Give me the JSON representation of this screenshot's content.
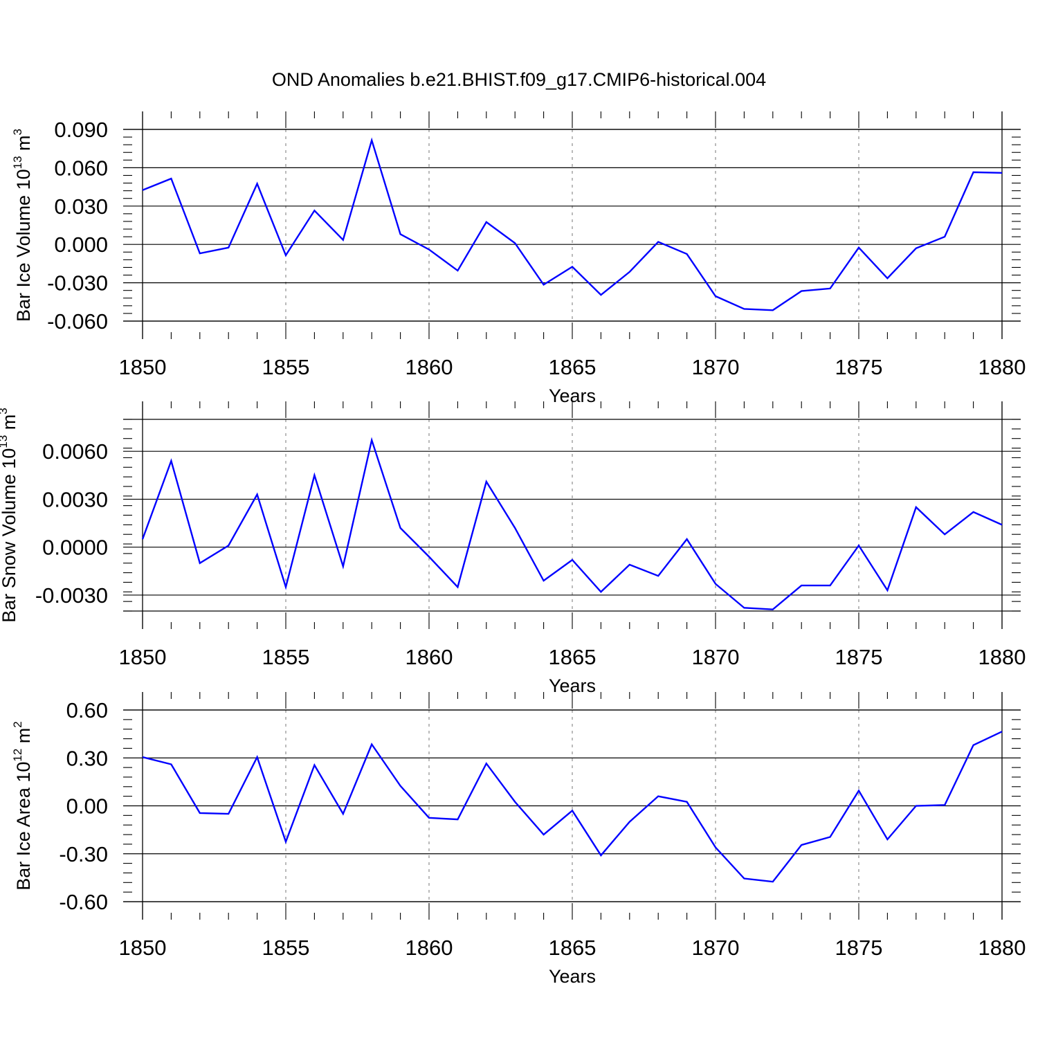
{
  "title": "OND Anomalies b.e21.BHIST.f09_g17.CMIP6-historical.004",
  "colors": {
    "series": "#0000ff",
    "axis": "#000000",
    "grid": "#8c8c8c"
  },
  "chart_data": [
    {
      "type": "line",
      "ylabel": {
        "text": "Bar Ice Volume 10",
        "exp": "13",
        "unit": " m",
        "unit_exp": "3"
      },
      "xlabel": "Years",
      "xlim": [
        1850,
        1880
      ],
      "ylim": [
        -0.06,
        0.09
      ],
      "xticks": [
        "1850",
        "1855",
        "1860",
        "1865",
        "1870",
        "1875",
        "1880"
      ],
      "yticks": [
        "0.090",
        "0.060",
        "0.030",
        "0.000",
        "-0.030",
        "-0.060"
      ],
      "ytick_values": [
        0.09,
        0.06,
        0.03,
        0.0,
        -0.03,
        -0.06
      ],
      "grid": "dashed vertical at major x ticks",
      "x": [
        1850,
        1851,
        1852,
        1853,
        1854,
        1855,
        1856,
        1857,
        1858,
        1859,
        1860,
        1861,
        1862,
        1863,
        1864,
        1865,
        1866,
        1867,
        1868,
        1869,
        1870,
        1871,
        1872,
        1873,
        1874,
        1875,
        1876,
        1877,
        1878,
        1879,
        1880
      ],
      "y": [
        0.0425,
        0.0515,
        -0.007,
        -0.0025,
        0.0475,
        -0.0085,
        0.0265,
        0.0035,
        0.0815,
        0.008,
        -0.004,
        -0.0205,
        0.0175,
        0.001,
        -0.0315,
        -0.0175,
        -0.0395,
        -0.0215,
        0.002,
        -0.0075,
        -0.0405,
        -0.0505,
        -0.0515,
        -0.0365,
        -0.0345,
        -0.0025,
        -0.0265,
        -0.003,
        0.006,
        0.0565,
        0.056
      ]
    },
    {
      "type": "line",
      "ylabel": {
        "text": "Bar Snow Volume 10",
        "exp": "13",
        "unit": " m",
        "unit_exp": "3"
      },
      "xlabel": "Years",
      "xlim": [
        1850,
        1880
      ],
      "ylim": [
        -0.004,
        0.008
      ],
      "xticks": [
        "1850",
        "1855",
        "1860",
        "1865",
        "1870",
        "1875",
        "1880"
      ],
      "yticks": [
        "0.0060",
        "0.0030",
        "0.0000",
        "-0.0030"
      ],
      "ytick_values": [
        0.006,
        0.003,
        0.0,
        -0.003
      ],
      "grid": "dashed vertical at major x ticks",
      "x": [
        1850,
        1851,
        1852,
        1853,
        1854,
        1855,
        1856,
        1857,
        1858,
        1859,
        1860,
        1861,
        1862,
        1863,
        1864,
        1865,
        1866,
        1867,
        1868,
        1869,
        1870,
        1871,
        1872,
        1873,
        1874,
        1875,
        1876,
        1877,
        1878,
        1879,
        1880
      ],
      "y": [
        0.0005,
        0.0054,
        -0.001,
        0.0001,
        0.0033,
        -0.0025,
        0.0045,
        -0.0012,
        0.0067,
        0.0012,
        -0.0006,
        -0.0025,
        0.0041,
        0.0012,
        -0.0021,
        -0.0008,
        -0.0028,
        -0.0011,
        -0.0018,
        0.0005,
        -0.0023,
        -0.0038,
        -0.0039,
        -0.0024,
        -0.0024,
        0.0001,
        -0.0027,
        0.0025,
        0.0008,
        0.0022,
        0.0014
      ]
    },
    {
      "type": "line",
      "ylabel": {
        "text": "Bar Ice Area 10",
        "exp": "12",
        "unit": " m",
        "unit_exp": "2"
      },
      "xlabel": "Years",
      "xlim": [
        1850,
        1880
      ],
      "ylim": [
        -0.6,
        0.6
      ],
      "xticks": [
        "1850",
        "1855",
        "1860",
        "1865",
        "1870",
        "1875",
        "1880"
      ],
      "yticks": [
        "0.60",
        "0.30",
        "0.00",
        "-0.30",
        "-0.60"
      ],
      "ytick_values": [
        0.6,
        0.3,
        0.0,
        -0.3,
        -0.6
      ],
      "grid": "dashed vertical at major x ticks",
      "x": [
        1850,
        1851,
        1852,
        1853,
        1854,
        1855,
        1856,
        1857,
        1858,
        1859,
        1860,
        1861,
        1862,
        1863,
        1864,
        1865,
        1866,
        1867,
        1868,
        1869,
        1870,
        1871,
        1872,
        1873,
        1874,
        1875,
        1876,
        1877,
        1878,
        1879,
        1880
      ],
      "y": [
        0.305,
        0.26,
        -0.045,
        -0.05,
        0.305,
        -0.225,
        0.255,
        -0.05,
        0.385,
        0.125,
        -0.075,
        -0.085,
        0.265,
        0.025,
        -0.18,
        -0.03,
        -0.31,
        -0.1,
        0.06,
        0.025,
        -0.26,
        -0.455,
        -0.475,
        -0.245,
        -0.195,
        0.095,
        -0.21,
        0.0,
        0.005,
        0.38,
        0.465
      ]
    }
  ]
}
